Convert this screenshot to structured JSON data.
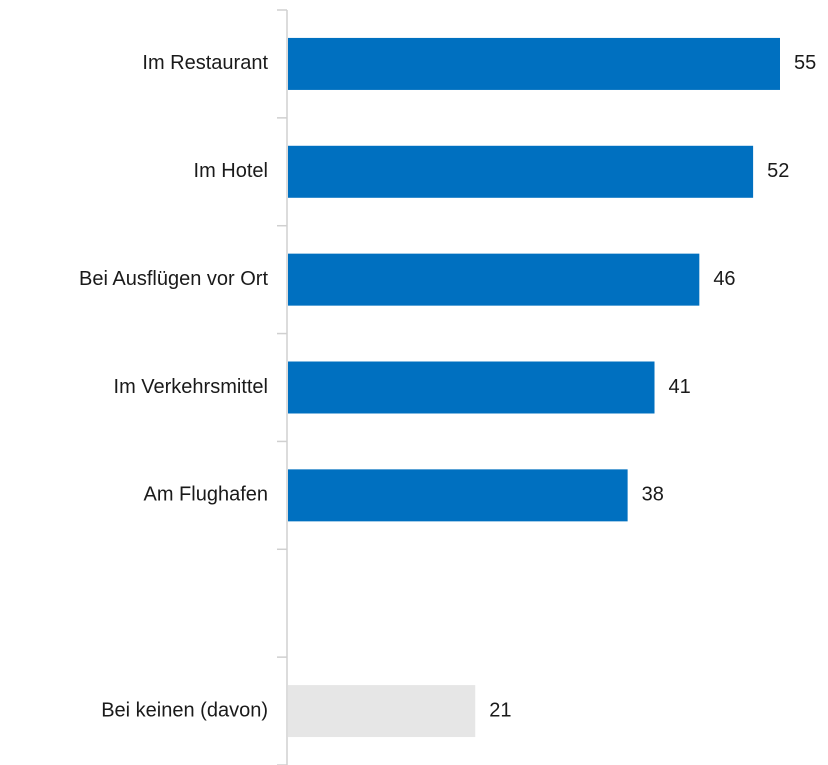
{
  "chart_data": {
    "type": "hbar",
    "categories": [
      "Im Restaurant",
      "Im Hotel",
      "Bei Ausflügen vor Ort",
      "Im Verkehrsmittel",
      "Am Flughafen",
      null,
      "Bei keinen (davon)"
    ],
    "values": [
      55,
      52,
      46,
      41,
      38,
      null,
      21
    ],
    "colors": [
      "#0070c0",
      "#0070c0",
      "#0070c0",
      "#0070c0",
      "#0070c0",
      null,
      "#e6e6e6"
    ]
  }
}
